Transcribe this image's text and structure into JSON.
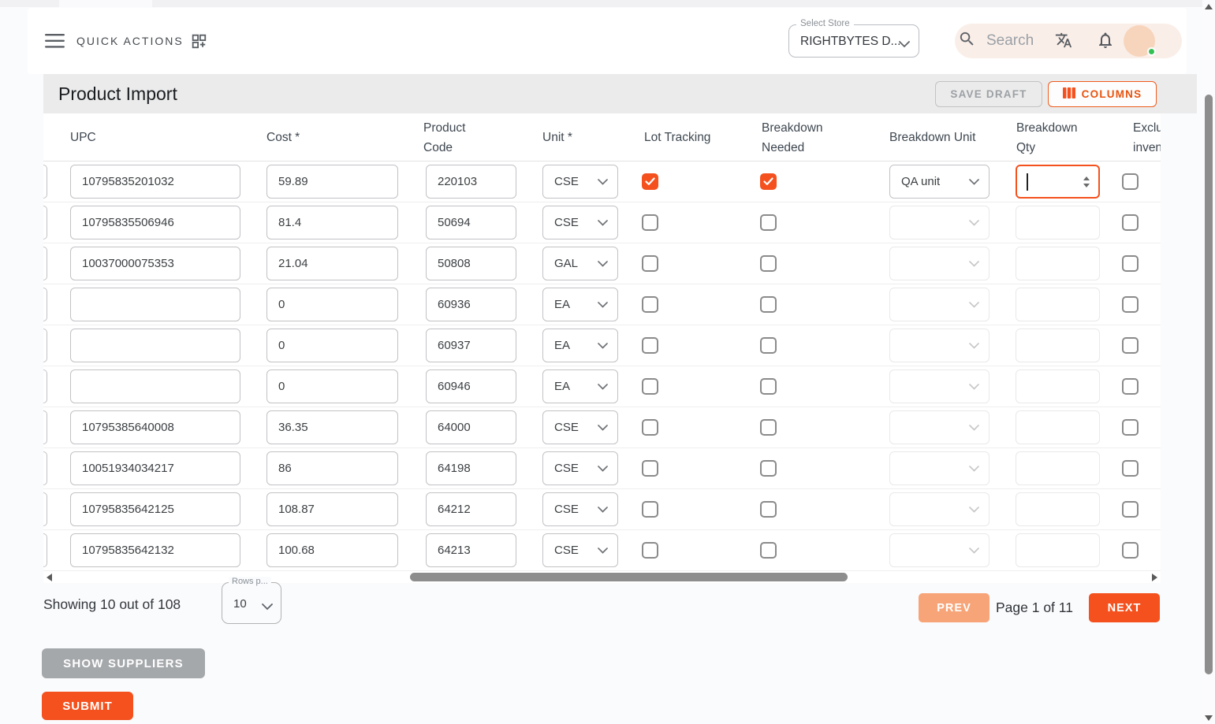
{
  "app_bar": {
    "quick_actions": "QUICK ACTIONS",
    "store_select": {
      "label": "Select Store",
      "value": "RIGHTBYTES D..."
    },
    "search_placeholder": "Search"
  },
  "page_header": {
    "title": "Product Import",
    "save_draft": "SAVE DRAFT",
    "columns": "COLUMNS"
  },
  "table": {
    "headers": {
      "upc": "UPC",
      "cost": "Cost *",
      "product_code": "Product Code",
      "unit": "Unit *",
      "lot_tracking": "Lot Tracking",
      "breakdown_needed": "Breakdown Needed",
      "breakdown_unit": "Breakdown Unit",
      "breakdown_qty": "Breakdown Qty",
      "exclude_inventory": "Exclude inventory"
    },
    "rows": [
      {
        "upc": "10795835201032",
        "cost": "59.89",
        "product_code": "220103",
        "unit": "CSE",
        "lot_tracking": true,
        "breakdown_needed": true,
        "breakdown_unit": "QA unit",
        "breakdown_qty": "",
        "breakdown_qty_focused": true,
        "exclude": false
      },
      {
        "upc": "10795835506946",
        "cost": "81.4",
        "product_code": "50694",
        "unit": "CSE",
        "lot_tracking": false,
        "breakdown_needed": false,
        "breakdown_unit": "",
        "breakdown_qty": "",
        "breakdown_qty_focused": false,
        "exclude": false
      },
      {
        "upc": "10037000075353",
        "cost": "21.04",
        "product_code": "50808",
        "unit": "GAL",
        "lot_tracking": false,
        "breakdown_needed": false,
        "breakdown_unit": "",
        "breakdown_qty": "",
        "breakdown_qty_focused": false,
        "exclude": false
      },
      {
        "upc": "",
        "cost": "0",
        "product_code": "60936",
        "unit": "EA",
        "lot_tracking": false,
        "breakdown_needed": false,
        "breakdown_unit": "",
        "breakdown_qty": "",
        "breakdown_qty_focused": false,
        "exclude": false
      },
      {
        "upc": "",
        "cost": "0",
        "product_code": "60937",
        "unit": "EA",
        "lot_tracking": false,
        "breakdown_needed": false,
        "breakdown_unit": "",
        "breakdown_qty": "",
        "breakdown_qty_focused": false,
        "exclude": false
      },
      {
        "upc": "",
        "cost": "0",
        "product_code": "60946",
        "unit": "EA",
        "lot_tracking": false,
        "breakdown_needed": false,
        "breakdown_unit": "",
        "breakdown_qty": "",
        "breakdown_qty_focused": false,
        "exclude": false
      },
      {
        "upc": "10795385640008",
        "cost": "36.35",
        "product_code": "64000",
        "unit": "CSE",
        "lot_tracking": false,
        "breakdown_needed": false,
        "breakdown_unit": "",
        "breakdown_qty": "",
        "breakdown_qty_focused": false,
        "exclude": false
      },
      {
        "upc": "10051934034217",
        "cost": "86",
        "product_code": "64198",
        "unit": "CSE",
        "lot_tracking": false,
        "breakdown_needed": false,
        "breakdown_unit": "",
        "breakdown_qty": "",
        "breakdown_qty_focused": false,
        "exclude": false
      },
      {
        "upc": "10795835642125",
        "cost": "108.87",
        "product_code": "64212",
        "unit": "CSE",
        "lot_tracking": false,
        "breakdown_needed": false,
        "breakdown_unit": "",
        "breakdown_qty": "",
        "breakdown_qty_focused": false,
        "exclude": false
      },
      {
        "upc": "10795835642132",
        "cost": "100.68",
        "product_code": "64213",
        "unit": "CSE",
        "lot_tracking": false,
        "breakdown_needed": false,
        "breakdown_unit": "",
        "breakdown_qty": "",
        "breakdown_qty_focused": false,
        "exclude": false
      }
    ]
  },
  "footer": {
    "showing": "Showing 10 out of 108",
    "rows_per_page": {
      "label": "Rows p...",
      "value": "10"
    },
    "prev": "PREV",
    "page_info": "Page 1 of 11",
    "next": "NEXT"
  },
  "actions": {
    "show_suppliers": "SHOW SUPPLIERS",
    "submit": "SUBMIT"
  },
  "colors": {
    "accent": "#f4511e",
    "accent_text": "#e8530e",
    "prev_disabled": "#f7a478",
    "gray_button": "#a5a8ab",
    "online_green": "#35c054",
    "checkbox_checked": "#f4511e"
  },
  "icons": {
    "menu": "menu-icon",
    "dashboard_customize": "dashboard-customize-icon",
    "chevron_down": "chevron-down-icon",
    "search": "search-icon",
    "translate": "translate-icon",
    "bell": "bell-icon",
    "columns": "columns-view-icon",
    "check": "check-icon",
    "spinner": "number-stepper-icon",
    "scroll_arrow": "scroll-arrow-icon"
  }
}
